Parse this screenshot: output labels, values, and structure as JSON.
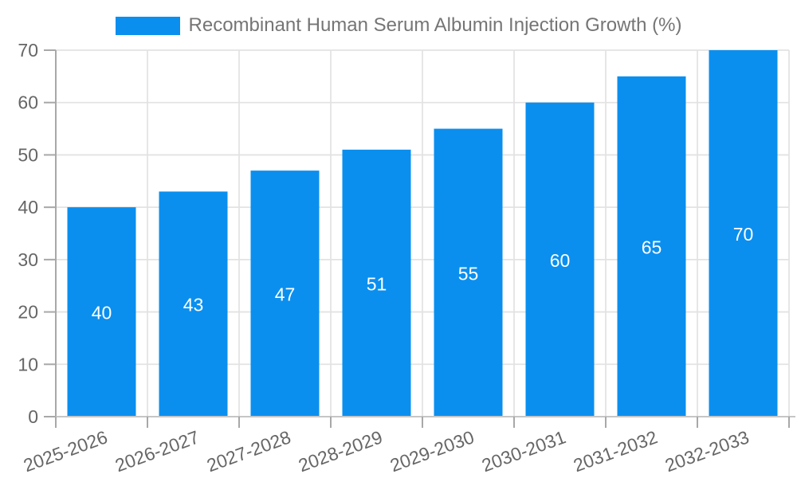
{
  "legend": {
    "label": "Recombinant Human Serum Albumin Injection Growth (%)",
    "swatch_color": "#0a8fef"
  },
  "chart_data": {
    "type": "bar",
    "title": "Recombinant Human Serum Albumin Injection Growth (%)",
    "categories": [
      "2025-2026",
      "2026-2027",
      "2027-2028",
      "2028-2029",
      "2029-2030",
      "2030-2031",
      "2031-2032",
      "2032-2033"
    ],
    "values": [
      40,
      43,
      47,
      51,
      55,
      60,
      65,
      70
    ],
    "xlabel": "",
    "ylabel": "",
    "ylim": [
      0,
      70
    ],
    "yticks": [
      0,
      10,
      20,
      30,
      40,
      50,
      60,
      70
    ],
    "grid": true,
    "legend_position": "top",
    "bar_color": "#0a8fef",
    "value_label_color": "#ffffff",
    "tick_label_color": "#666666",
    "grid_color": "#e3e3e3",
    "axis_color": "#a8a8a8",
    "x_axis_line_color": "#c6c6c6",
    "x_label_rotation_deg": -20
  }
}
